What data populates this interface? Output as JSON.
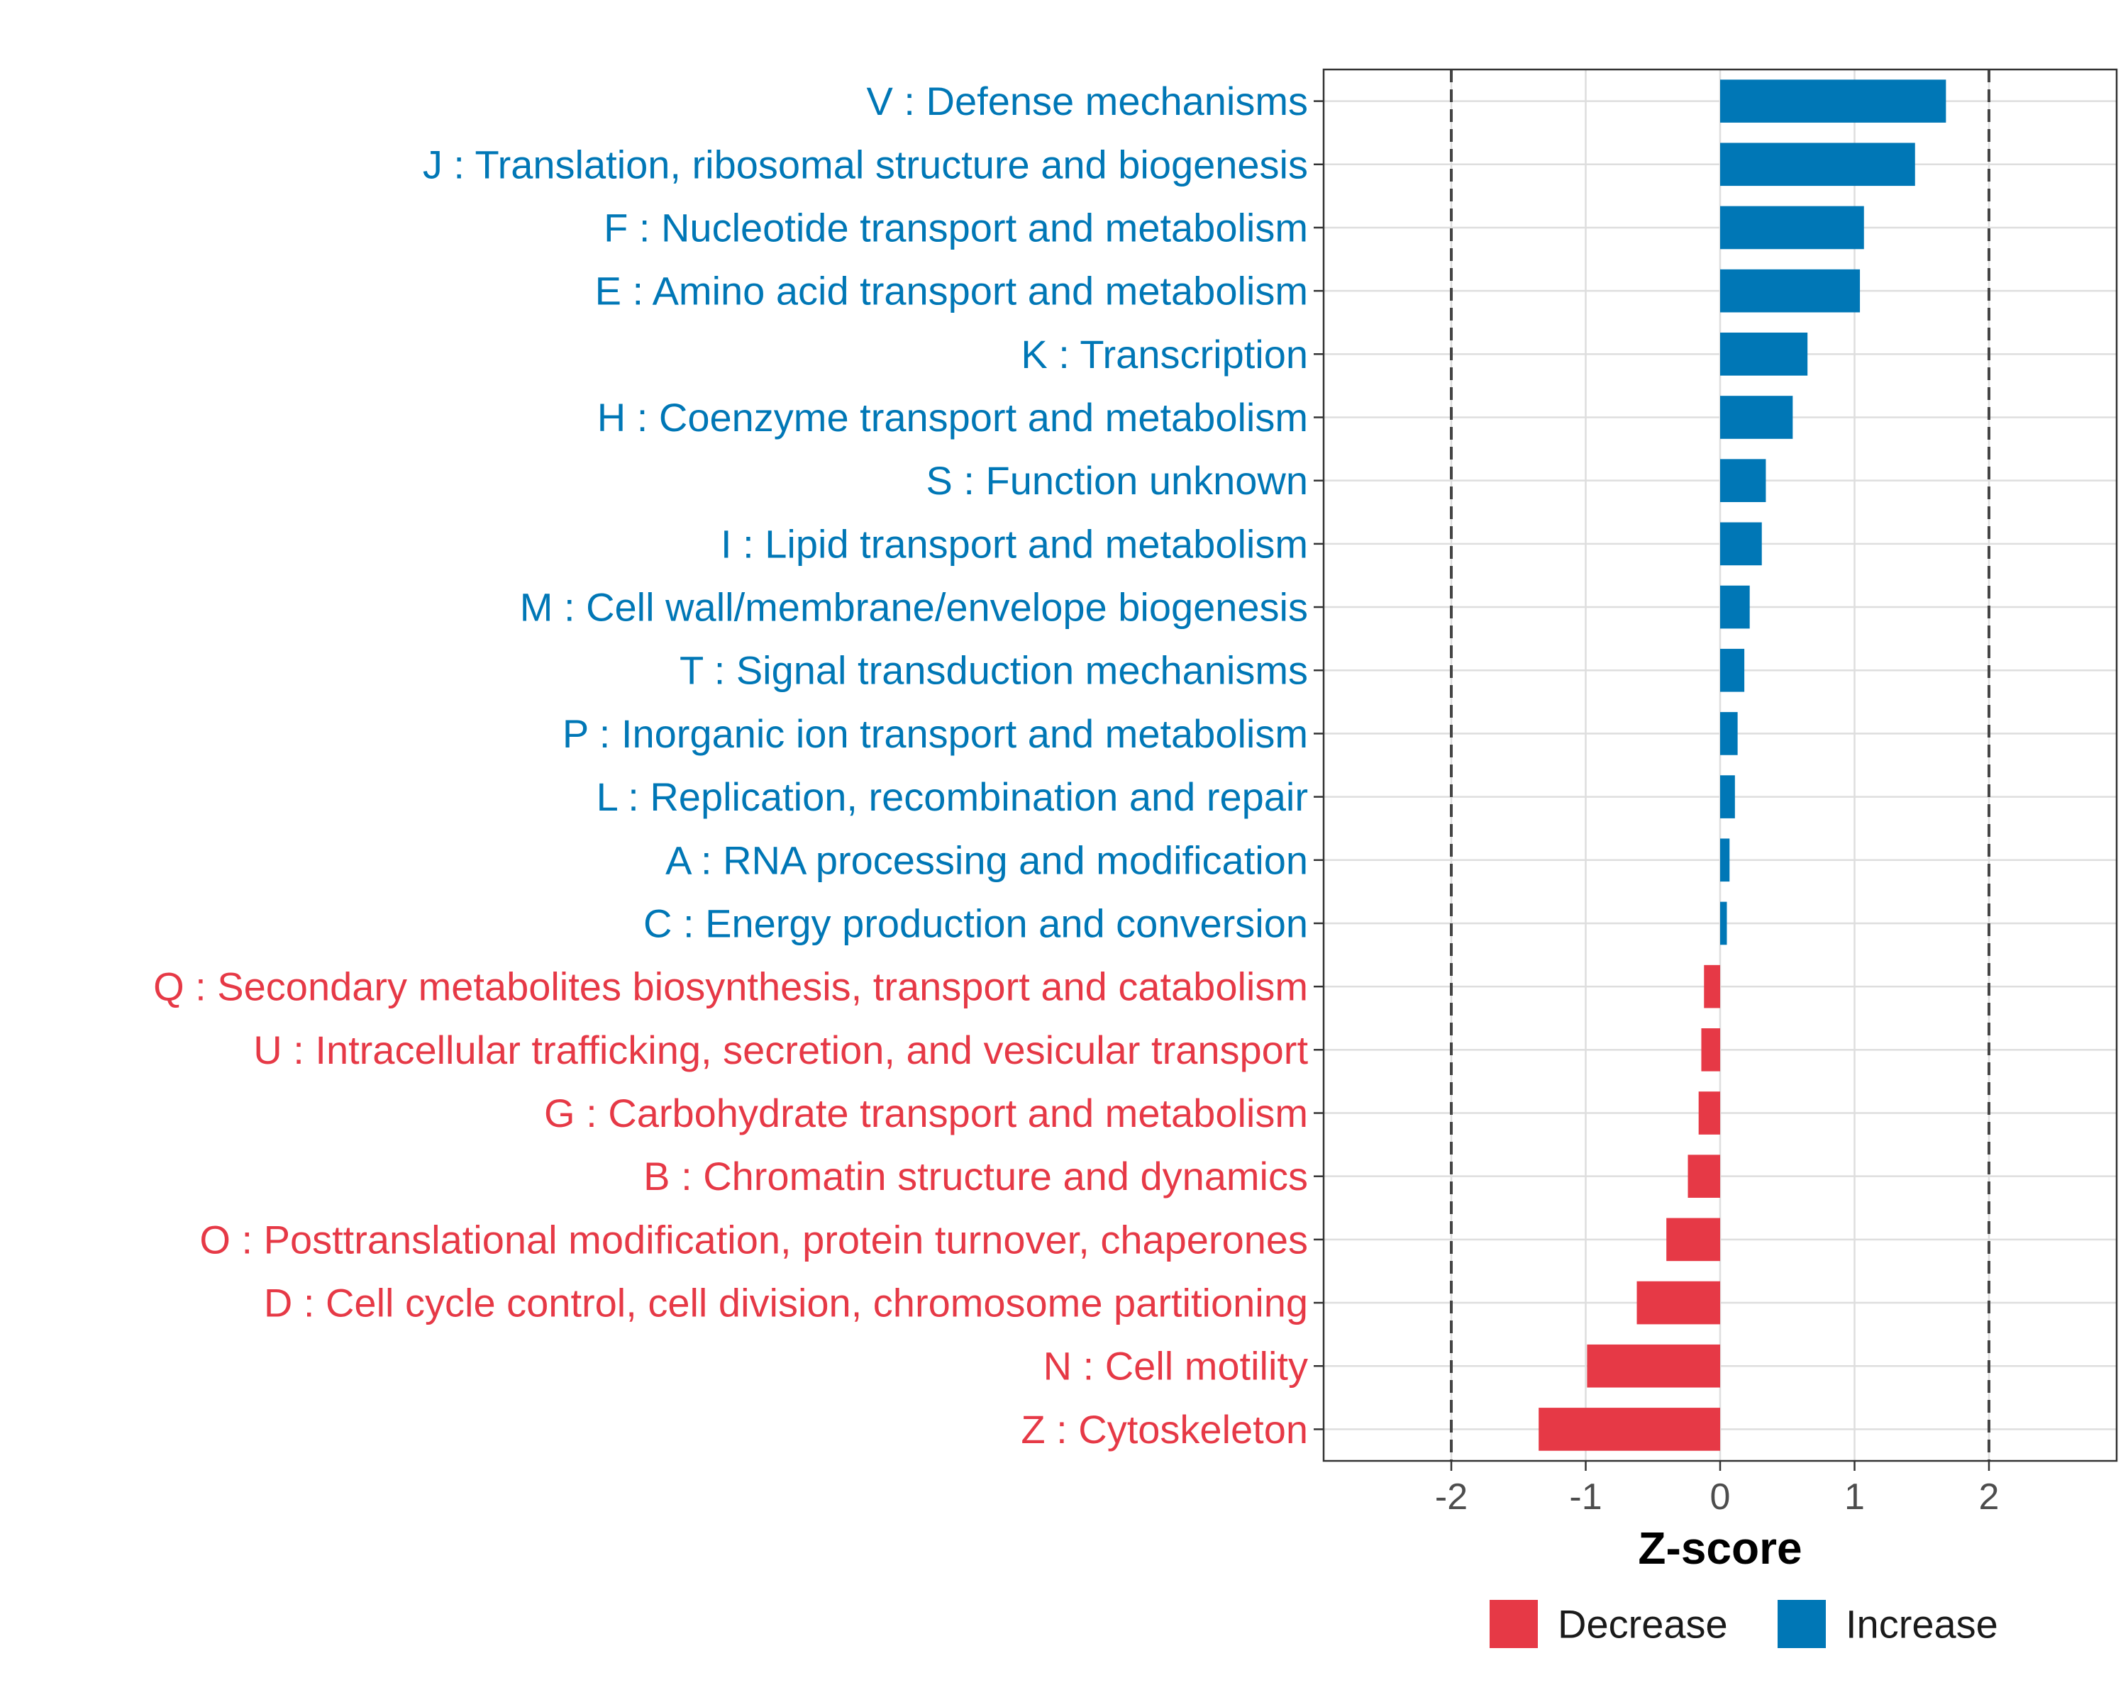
{
  "chart_data": {
    "type": "bar",
    "orientation": "horizontal",
    "title": "",
    "xlabel": "Z-score",
    "ylabel": "",
    "xlim": [
      -2.95,
      2.95
    ],
    "xticks": [
      -2,
      -1,
      0,
      1,
      2
    ],
    "xtick_labels": [
      "-2",
      "-1",
      "0",
      "1",
      "2"
    ],
    "reference_lines": [
      -2,
      2
    ],
    "grid": true,
    "legend_position": "bottom",
    "colors": {
      "Decrease": "#e63946",
      "Increase": "#0077b6"
    },
    "legend": [
      {
        "key": "Decrease",
        "label": "Decrease"
      },
      {
        "key": "Increase",
        "label": "Increase"
      }
    ],
    "categories": [
      "V : Defense mechanisms",
      "J : Translation, ribosomal structure and biogenesis",
      "F : Nucleotide transport and metabolism",
      "E : Amino acid transport and metabolism",
      "K : Transcription",
      "H : Coenzyme transport and metabolism",
      "S : Function unknown",
      "I : Lipid transport and metabolism",
      "M : Cell wall/membrane/envelope biogenesis",
      "T : Signal transduction mechanisms",
      "P : Inorganic ion transport and metabolism",
      "L : Replication, recombination and repair",
      "A : RNA processing and modification",
      "C : Energy production and conversion",
      "Q : Secondary metabolites biosynthesis, transport and catabolism",
      "U : Intracellular trafficking, secretion, and vesicular transport",
      "G : Carbohydrate transport and metabolism",
      "B : Chromatin structure and dynamics",
      "O : Posttranslational modification, protein turnover, chaperones",
      "D : Cell cycle control, cell division, chromosome partitioning",
      "N : Cell motility",
      "Z : Cytoskeleton"
    ],
    "values": [
      1.68,
      1.45,
      1.07,
      1.04,
      0.65,
      0.54,
      0.34,
      0.31,
      0.22,
      0.18,
      0.13,
      0.11,
      0.07,
      0.05,
      -0.12,
      -0.14,
      -0.16,
      -0.24,
      -0.4,
      -0.62,
      -0.99,
      -1.35
    ],
    "groups": [
      "Increase",
      "Increase",
      "Increase",
      "Increase",
      "Increase",
      "Increase",
      "Increase",
      "Increase",
      "Increase",
      "Increase",
      "Increase",
      "Increase",
      "Increase",
      "Increase",
      "Decrease",
      "Decrease",
      "Decrease",
      "Decrease",
      "Decrease",
      "Decrease",
      "Decrease",
      "Decrease"
    ]
  }
}
